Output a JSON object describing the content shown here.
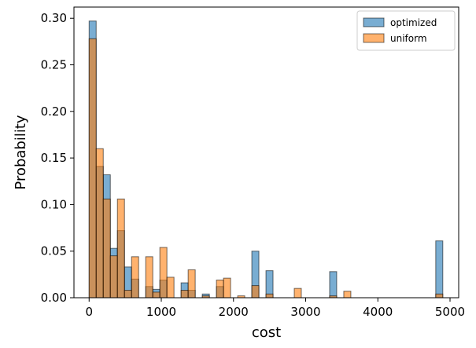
{
  "chart_data": {
    "type": "bar",
    "subtype": "overlaid-histogram",
    "title": "",
    "xlabel": "cost",
    "ylabel": "Probability",
    "xlim": [
      -210,
      5120
    ],
    "ylim": [
      0,
      0.312
    ],
    "xticks": [
      0,
      1000,
      2000,
      3000,
      4000,
      5000
    ],
    "yticks": [
      0.0,
      0.05,
      0.1,
      0.15,
      0.2,
      0.25,
      0.3
    ],
    "ytick_labels": [
      "0.00",
      "0.05",
      "0.10",
      "0.15",
      "0.20",
      "0.25",
      "0.30"
    ],
    "grid": false,
    "legend_position": "top-right",
    "bin_starts": [
      0,
      98,
      196,
      294,
      392,
      490,
      588,
      686,
      784,
      882,
      980,
      1078,
      1176,
      1274,
      1372,
      1470,
      1568,
      1666,
      1764,
      1862,
      1960,
      2058,
      2156,
      2254,
      2352,
      2450,
      2548,
      2646,
      2744,
      2842,
      2940,
      3038,
      3136,
      3234,
      3332,
      3430,
      3528,
      3626,
      3724,
      3822,
      3920,
      4018,
      4116,
      4214,
      4312,
      4410,
      4508,
      4606,
      4704,
      4802
    ],
    "bin_width": 98,
    "series": [
      {
        "name": "optimized",
        "color": "#1f77b4",
        "values": [
          0.297,
          0.141,
          0.132,
          0.053,
          0.072,
          0.033,
          0.02,
          0.0,
          0.012,
          0.009,
          0.019,
          0.0,
          0.0,
          0.016,
          0.008,
          0.0,
          0.004,
          0.0,
          0.012,
          0.0,
          0.0,
          0.0,
          0.0,
          0.05,
          0.0,
          0.029,
          0.0,
          0.0,
          0.0,
          0.0,
          0.0,
          0.0,
          0.0,
          0.0,
          0.028,
          0.0,
          0.0,
          0.0,
          0.0,
          0.0,
          0.0,
          0.0,
          0.0,
          0.0,
          0.0,
          0.0,
          0.0,
          0.0,
          0.0,
          0.061
        ]
      },
      {
        "name": "uniform",
        "color": "#ff7f0e",
        "values": [
          0.278,
          0.16,
          0.106,
          0.045,
          0.106,
          0.008,
          0.044,
          0.0,
          0.044,
          0.006,
          0.054,
          0.022,
          0.0,
          0.008,
          0.03,
          0.0,
          0.002,
          0.0,
          0.019,
          0.021,
          0.0,
          0.002,
          0.0,
          0.013,
          0.0,
          0.004,
          0.0,
          0.0,
          0.0,
          0.01,
          0.0,
          0.0,
          0.0,
          0.0,
          0.002,
          0.0,
          0.007,
          0.0,
          0.0,
          0.0,
          0.0,
          0.0,
          0.0,
          0.0,
          0.0,
          0.0,
          0.0,
          0.0,
          0.0,
          0.004
        ]
      }
    ]
  }
}
